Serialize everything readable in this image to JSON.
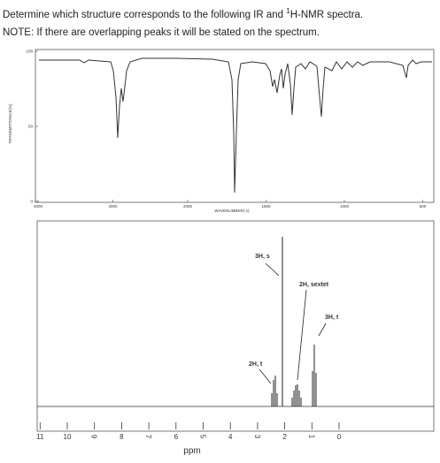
{
  "header": {
    "prompt_before": "Determine which structure corresponds to the following IR and ",
    "prompt_sup": "1",
    "prompt_after": "H-NMR spectra.",
    "note": "NOTE:  If there are overlapping peaks it will be stated on the spectrum."
  },
  "ir": {
    "y_label": "TRANSMITTANCE(%)",
    "x_label": "WAVENUMBER(-1)",
    "y_ticks": [
      100,
      50,
      0
    ],
    "x_ticks": [
      4000,
      3000,
      2000,
      1500,
      1000,
      500
    ]
  },
  "nmr": {
    "x_ticks": [
      11,
      10,
      9,
      8,
      7,
      6,
      5,
      4,
      3,
      2,
      1,
      0
    ],
    "x_label": "ppm",
    "annotations": [
      "3H, s",
      "2H, sextet",
      "3H, t",
      "2H, t"
    ]
  }
}
